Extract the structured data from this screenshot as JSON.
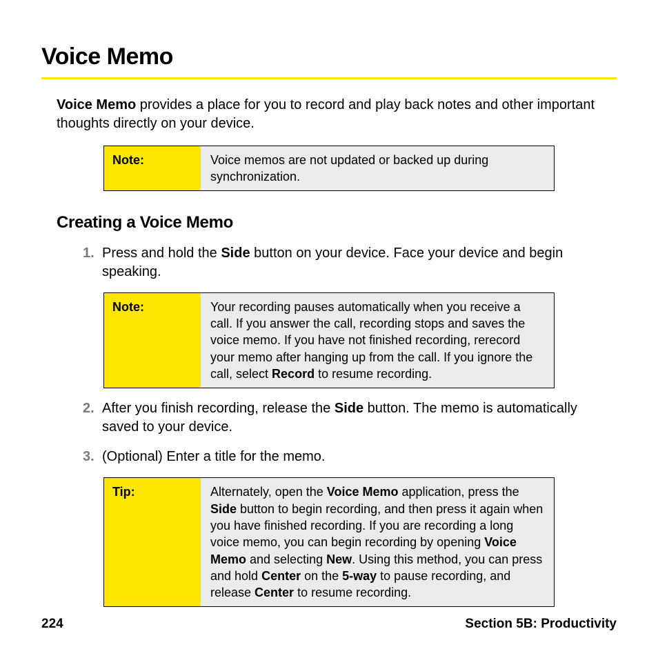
{
  "colors": {
    "accent_yellow": "#ffe600",
    "callout_bg": "#ebebeb",
    "rule": "#ffe600",
    "num_gray": "#808080",
    "border": "#000000",
    "text": "#000000",
    "page_bg": "#ffffff"
  },
  "typography": {
    "body_pt": 20,
    "h1_pt": 34,
    "h2_pt": 24,
    "callout_pt": 18,
    "footer_pt": 19,
    "font_family": "Myriad Pro / Segoe UI / Helvetica"
  },
  "heading1": "Voice Memo",
  "intro": {
    "bold": "Voice Memo",
    "rest": " provides a place for you to record and play back notes and other important thoughts directly on your device."
  },
  "note1": {
    "label": "Note:",
    "body": "Voice memos are not updated or backed up during synchronization."
  },
  "heading2": "Creating a Voice Memo",
  "steps": {
    "s1": {
      "num": "1.",
      "pre": "Press and hold the ",
      "b1": "Side",
      "post": " button on your device. Face your device and begin speaking."
    },
    "s2": {
      "num": "2.",
      "pre": "After you finish recording, release the ",
      "b1": "Side",
      "post": " button. The memo is automatically saved to your device."
    },
    "s3": {
      "num": "3.",
      "text": "(Optional) Enter a title for the memo."
    }
  },
  "note2": {
    "label": "Note:",
    "pre": "Your recording pauses automatically when you receive a call. If you answer the call, recording stops and saves the voice memo. If you have not finished recording, rerecord your memo after hanging up from the call. If you ignore the call, select ",
    "b1": "Record",
    "post": " to resume recording."
  },
  "tip": {
    "label": "Tip:",
    "t1": "Alternately, open the ",
    "b1": "Voice Memo",
    "t2": " application, press the ",
    "b2": "Side",
    "t3": " button to begin recording, and then press it again when you have finished recording. If you are recording a long voice memo, you can begin recording by opening ",
    "b3": "Voice Memo",
    "t4": " and selecting ",
    "b4": "New",
    "t5": ". Using this method, you can press and hold ",
    "b5": "Center",
    "t6": " on the ",
    "b6": "5-way",
    "t7": " to pause recording, and release ",
    "b7": "Center",
    "t8": " to resume recording."
  },
  "footer": {
    "page": "224",
    "section": "Section 5B: Productivity"
  }
}
